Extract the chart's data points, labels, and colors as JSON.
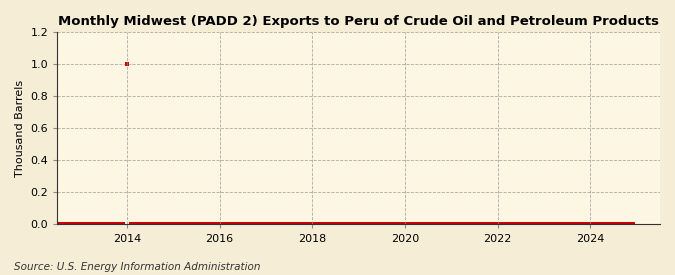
{
  "title": "Monthly Midwest (PADD 2) Exports to Peru of Crude Oil and Petroleum Products",
  "ylabel": "Thousand Barrels",
  "source": "Source: U.S. Energy Information Administration",
  "background_color": "#F5EDD6",
  "plot_background_color": "#FDF6E3",
  "ylim": [
    0.0,
    1.2
  ],
  "yticks": [
    0.0,
    0.2,
    0.4,
    0.6,
    0.8,
    1.0,
    1.2
  ],
  "xlim_start": 2012.5,
  "xlim_end": 2025.5,
  "xticks": [
    2014,
    2016,
    2018,
    2020,
    2022,
    2024
  ],
  "marker_color": "#CC0000",
  "grid_color": "#999999",
  "title_fontsize": 9.5,
  "data_x": [
    2012.083,
    2012.167,
    2012.25,
    2012.333,
    2012.417,
    2012.5,
    2012.583,
    2012.667,
    2012.75,
    2012.833,
    2012.917,
    2013.0,
    2013.083,
    2013.167,
    2013.25,
    2013.333,
    2013.417,
    2013.5,
    2013.583,
    2013.667,
    2013.75,
    2013.833,
    2013.917,
    2014.0,
    2014.083,
    2014.167,
    2014.25,
    2014.333,
    2014.417,
    2014.5,
    2014.583,
    2014.667,
    2014.75,
    2014.833,
    2014.917,
    2015.0,
    2015.083,
    2015.167,
    2015.25,
    2015.333,
    2015.417,
    2015.5,
    2015.583,
    2015.667,
    2015.75,
    2015.833,
    2015.917,
    2016.0,
    2016.083,
    2016.167,
    2016.25,
    2016.333,
    2016.417,
    2016.5,
    2016.583,
    2016.667,
    2016.75,
    2016.833,
    2016.917,
    2017.0,
    2017.083,
    2017.167,
    2017.25,
    2017.333,
    2017.417,
    2017.5,
    2017.583,
    2017.667,
    2017.75,
    2017.833,
    2017.917,
    2018.0,
    2018.083,
    2018.167,
    2018.25,
    2018.333,
    2018.417,
    2018.5,
    2018.583,
    2018.667,
    2018.75,
    2018.833,
    2018.917,
    2019.0,
    2019.083,
    2019.167,
    2019.25,
    2019.333,
    2019.417,
    2019.5,
    2019.583,
    2019.667,
    2019.75,
    2019.833,
    2019.917,
    2020.0,
    2020.083,
    2020.167,
    2020.25,
    2020.333,
    2020.417,
    2020.5,
    2020.583,
    2020.667,
    2020.75,
    2020.833,
    2020.917,
    2021.0,
    2021.083,
    2021.167,
    2021.25,
    2021.333,
    2021.417,
    2021.5,
    2021.583,
    2021.667,
    2021.75,
    2021.833,
    2021.917,
    2022.0,
    2022.083,
    2022.167,
    2022.25,
    2022.333,
    2022.417,
    2022.5,
    2022.583,
    2022.667,
    2022.75,
    2022.833,
    2022.917,
    2023.0,
    2023.083,
    2023.167,
    2023.25,
    2023.333,
    2023.417,
    2023.5,
    2023.583,
    2023.667,
    2023.75,
    2023.833,
    2023.917,
    2024.0,
    2024.083,
    2024.167,
    2024.25,
    2024.333,
    2024.417,
    2024.5,
    2024.583,
    2024.667,
    2024.75,
    2024.833,
    2024.917
  ],
  "data_y": [
    0,
    0,
    0,
    0,
    0,
    0,
    0,
    0,
    0,
    0,
    0,
    0,
    0,
    0,
    0,
    0,
    0,
    0,
    0,
    0,
    0,
    0,
    0,
    1.0,
    0,
    0,
    0,
    0,
    0,
    0,
    0,
    0,
    0,
    0,
    0,
    0,
    0,
    0,
    0,
    0,
    0,
    0,
    0,
    0,
    0,
    0,
    0,
    0,
    0,
    0,
    0,
    0,
    0,
    0,
    0,
    0,
    0,
    0,
    0,
    0,
    0,
    0,
    0,
    0,
    0,
    0,
    0,
    0,
    0,
    0,
    0,
    0,
    0,
    0,
    0,
    0,
    0,
    0,
    0,
    0,
    0,
    0,
    0,
    0,
    0,
    0,
    0,
    0,
    0,
    0,
    0,
    0,
    0,
    0,
    0,
    0,
    0,
    0,
    0,
    0,
    0,
    0,
    0,
    0,
    0,
    0,
    0,
    0,
    0,
    0,
    0,
    0,
    0,
    0,
    0,
    0,
    0,
    0,
    0,
    0,
    0,
    0,
    0,
    0,
    0,
    0,
    0,
    0,
    0,
    0,
    0,
    0,
    0,
    0,
    0,
    0,
    0,
    0,
    0,
    0,
    0,
    0,
    0,
    0,
    0,
    0,
    0,
    0,
    0,
    0,
    0,
    0,
    0,
    0,
    0
  ]
}
